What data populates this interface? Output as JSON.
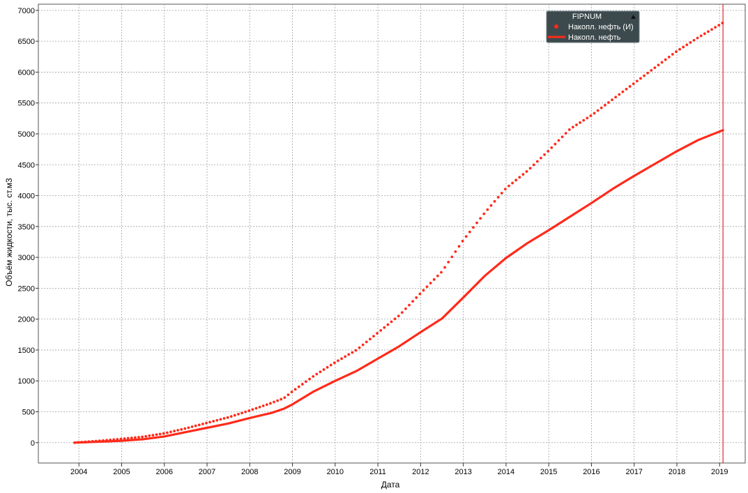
{
  "chart_data": {
    "type": "line",
    "xlabel": "Дата",
    "ylabel": "Объём жидкости, тыс. ст.м3",
    "xlim": [
      2003.05,
      2019.6
    ],
    "ylim": [
      -330,
      7100
    ],
    "x_ticks": [
      "2004",
      "2005",
      "2006",
      "2007",
      "2008",
      "2009",
      "2010",
      "2011",
      "2012",
      "2013",
      "2014",
      "2015",
      "2016",
      "2017",
      "2018",
      "2019"
    ],
    "y_ticks": [
      "0",
      "500",
      "1000",
      "1500",
      "2000",
      "2500",
      "3000",
      "3500",
      "4000",
      "4500",
      "5000",
      "5500",
      "6000",
      "6500",
      "7000"
    ],
    "grid": true,
    "marker_line_x": 2019.08,
    "legend": {
      "title": "FIPNUM",
      "placement": "top-right",
      "items": [
        "Накопл. нефть (И)",
        "Накопл. нефть"
      ]
    },
    "series": [
      {
        "name": "Накопл. нефть (И)",
        "style": "dotted",
        "color": "#ff2a1a",
        "points": [
          [
            2003.9,
            0
          ],
          [
            2004.5,
            30
          ],
          [
            2005.0,
            60
          ],
          [
            2005.5,
            95
          ],
          [
            2006.0,
            150
          ],
          [
            2006.5,
            230
          ],
          [
            2007.0,
            320
          ],
          [
            2007.5,
            410
          ],
          [
            2008.0,
            520
          ],
          [
            2008.5,
            640
          ],
          [
            2008.8,
            720
          ],
          [
            2009.0,
            830
          ],
          [
            2009.5,
            1080
          ],
          [
            2010.0,
            1300
          ],
          [
            2010.5,
            1500
          ],
          [
            2011.0,
            1780
          ],
          [
            2011.5,
            2060
          ],
          [
            2012.0,
            2420
          ],
          [
            2012.5,
            2770
          ],
          [
            2013.0,
            3280
          ],
          [
            2013.5,
            3720
          ],
          [
            2014.0,
            4120
          ],
          [
            2014.5,
            4400
          ],
          [
            2015.0,
            4730
          ],
          [
            2015.5,
            5080
          ],
          [
            2016.0,
            5300
          ],
          [
            2016.5,
            5560
          ],
          [
            2017.0,
            5820
          ],
          [
            2017.5,
            6080
          ],
          [
            2018.0,
            6340
          ],
          [
            2018.5,
            6560
          ],
          [
            2019.08,
            6800
          ]
        ]
      },
      {
        "name": "Накопл. нефть",
        "style": "solid",
        "color": "#ff2a1a",
        "points": [
          [
            2003.9,
            0
          ],
          [
            2004.5,
            15
          ],
          [
            2005.0,
            30
          ],
          [
            2005.5,
            55
          ],
          [
            2006.0,
            100
          ],
          [
            2006.5,
            170
          ],
          [
            2007.0,
            240
          ],
          [
            2007.5,
            310
          ],
          [
            2008.0,
            400
          ],
          [
            2008.5,
            480
          ],
          [
            2008.8,
            550
          ],
          [
            2009.0,
            620
          ],
          [
            2009.5,
            830
          ],
          [
            2010.0,
            1000
          ],
          [
            2010.5,
            1160
          ],
          [
            2011.0,
            1360
          ],
          [
            2011.5,
            1560
          ],
          [
            2012.0,
            1790
          ],
          [
            2012.5,
            2010
          ],
          [
            2013.0,
            2350
          ],
          [
            2013.5,
            2700
          ],
          [
            2014.0,
            2990
          ],
          [
            2014.5,
            3230
          ],
          [
            2015.0,
            3440
          ],
          [
            2015.5,
            3660
          ],
          [
            2016.0,
            3880
          ],
          [
            2016.5,
            4110
          ],
          [
            2017.0,
            4320
          ],
          [
            2017.5,
            4520
          ],
          [
            2018.0,
            4720
          ],
          [
            2018.5,
            4900
          ],
          [
            2019.08,
            5060
          ]
        ]
      }
    ]
  }
}
